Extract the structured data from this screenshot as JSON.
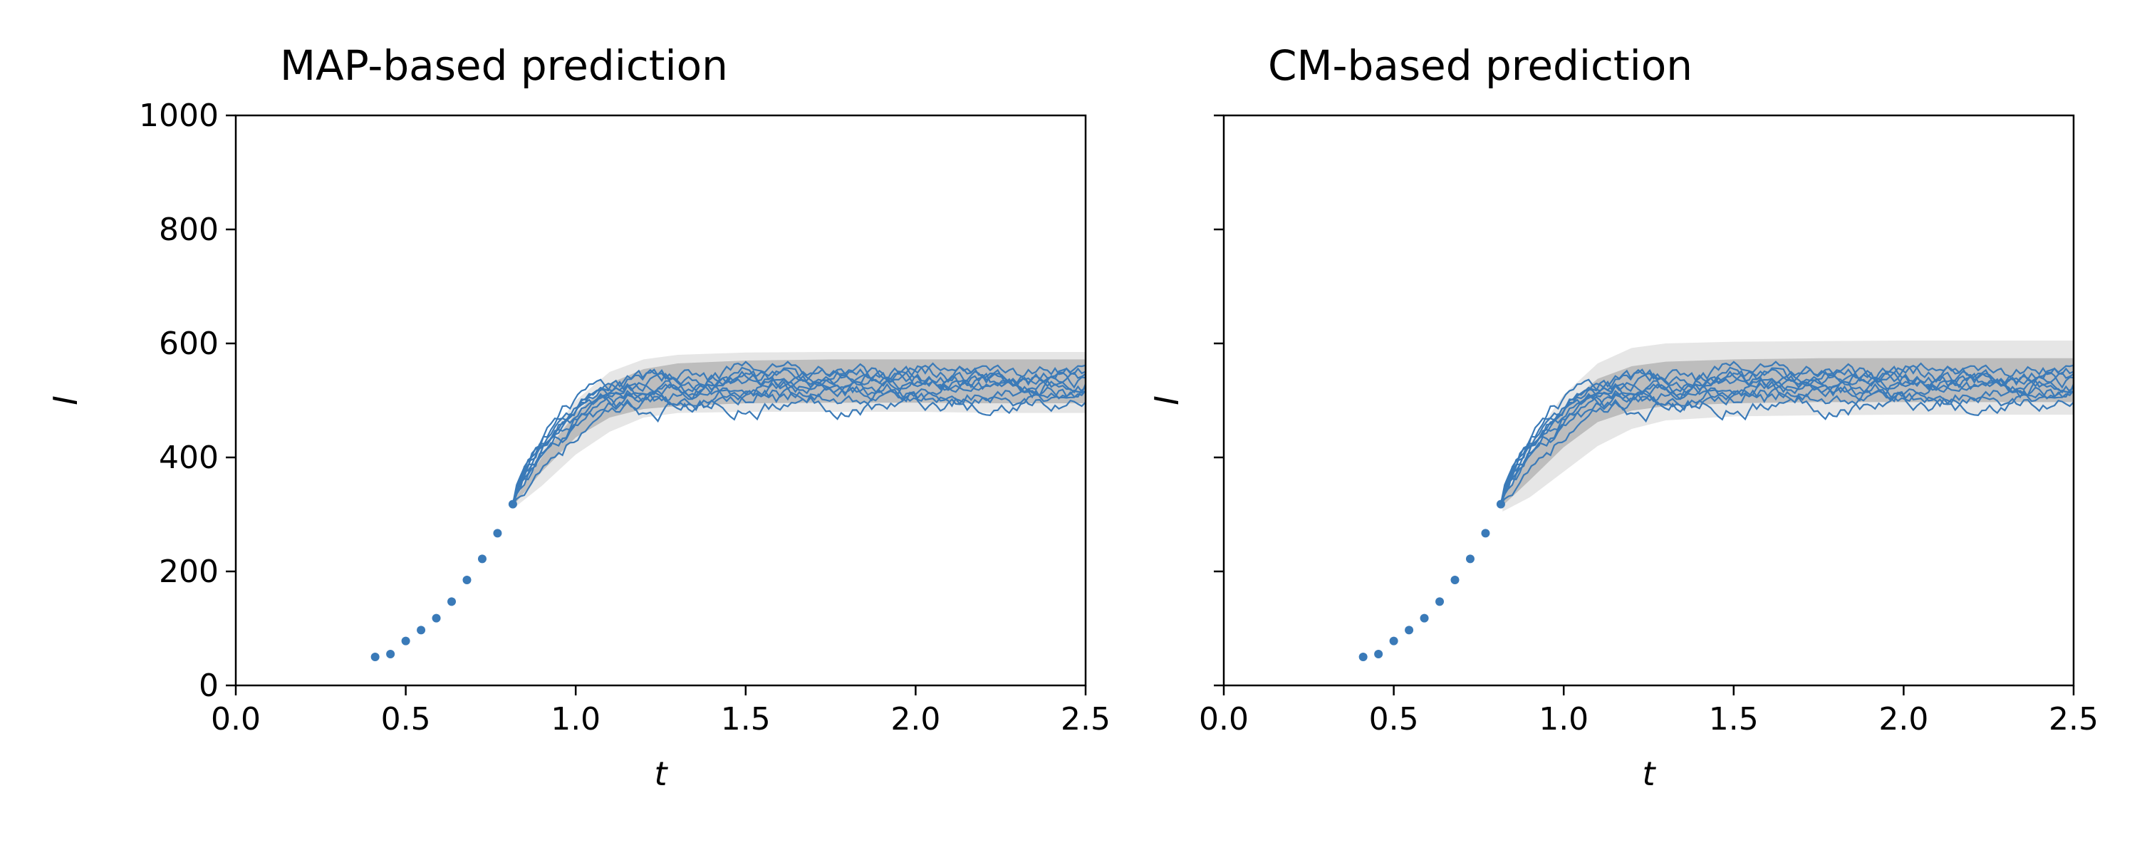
{
  "figure": {
    "background": "#ffffff"
  },
  "chart_data": [
    {
      "type": "line",
      "title": "MAP-based prediction",
      "xlabel": "t",
      "ylabel": "I",
      "xlim": [
        0,
        2.5
      ],
      "ylim": [
        0,
        1000
      ],
      "xticks": [
        0.0,
        0.5,
        1.0,
        1.5,
        2.0,
        2.5
      ],
      "xtick_labels": [
        "0.0",
        "0.5",
        "1.0",
        "1.5",
        "2.0",
        "2.5"
      ],
      "yticks": [
        0,
        200,
        400,
        600,
        800,
        1000
      ],
      "ytick_labels": [
        "0",
        "200",
        "400",
        "600",
        "800",
        "1000"
      ],
      "show_ytick_labels": true,
      "grid": false,
      "observed": {
        "color": "#3a7ab8",
        "x": [
          0.41,
          0.455,
          0.5,
          0.545,
          0.59,
          0.635,
          0.68,
          0.725,
          0.77,
          0.815
        ],
        "y": [
          50,
          55,
          78,
          97,
          118,
          147,
          185,
          222,
          267,
          318
        ]
      },
      "bands": [
        {
          "color": "#e6e6e6",
          "x": [
            0.82,
            0.9,
            1.0,
            1.1,
            1.2,
            1.3,
            1.5,
            1.75,
            2.0,
            2.25,
            2.5
          ],
          "lower": [
            312,
            350,
            405,
            445,
            470,
            478,
            480,
            480,
            480,
            478,
            478
          ],
          "upper": [
            332,
            420,
            500,
            550,
            572,
            580,
            584,
            585,
            585,
            585,
            585
          ]
        },
        {
          "color": "#bdbdbd",
          "x": [
            0.82,
            0.9,
            1.0,
            1.1,
            1.2,
            1.3,
            1.5,
            1.75,
            2.0,
            2.25,
            2.5
          ],
          "lower": [
            318,
            375,
            435,
            470,
            485,
            490,
            495,
            496,
            496,
            495,
            495
          ],
          "upper": [
            326,
            400,
            478,
            530,
            555,
            565,
            570,
            572,
            572,
            572,
            572
          ]
        }
      ],
      "trajectories": {
        "color": "#3a7ab8",
        "count": 10,
        "x_start": 0.815,
        "y_start": 318,
        "end_levels": [
          540,
          505,
          525,
          530,
          495,
          545,
          520,
          550,
          515,
          535
        ],
        "rise_rates": [
          7.0,
          6.4,
          7.6,
          6.8,
          6.0,
          7.3,
          6.6,
          7.9,
          6.2,
          7.1
        ]
      }
    },
    {
      "type": "line",
      "title": "CM-based prediction",
      "xlabel": "t",
      "ylabel": "I",
      "xlim": [
        0,
        2.5
      ],
      "ylim": [
        0,
        1000
      ],
      "xticks": [
        0.0,
        0.5,
        1.0,
        1.5,
        2.0,
        2.5
      ],
      "xtick_labels": [
        "0.0",
        "0.5",
        "1.0",
        "1.5",
        "2.0",
        "2.5"
      ],
      "yticks": [
        0,
        200,
        400,
        600,
        800,
        1000
      ],
      "ytick_labels": [
        "0",
        "200",
        "400",
        "600",
        "800",
        "1000"
      ],
      "show_ytick_labels": false,
      "grid": false,
      "observed": {
        "color": "#3a7ab8",
        "x": [
          0.41,
          0.455,
          0.5,
          0.545,
          0.59,
          0.635,
          0.68,
          0.725,
          0.77,
          0.815
        ],
        "y": [
          50,
          55,
          78,
          97,
          118,
          147,
          185,
          222,
          267,
          318
        ]
      },
      "bands": [
        {
          "color": "#e6e6e6",
          "x": [
            0.82,
            0.9,
            1.0,
            1.1,
            1.2,
            1.3,
            1.5,
            1.75,
            2.0,
            2.25,
            2.5
          ],
          "lower": [
            305,
            330,
            375,
            420,
            450,
            465,
            472,
            474,
            475,
            475,
            475
          ],
          "upper": [
            335,
            425,
            510,
            565,
            592,
            600,
            603,
            604,
            605,
            605,
            605
          ]
        },
        {
          "color": "#bdbdbd",
          "x": [
            0.82,
            0.9,
            1.0,
            1.1,
            1.2,
            1.3,
            1.5,
            1.75,
            2.0,
            2.25,
            2.5
          ],
          "lower": [
            315,
            360,
            418,
            462,
            482,
            490,
            495,
            497,
            497,
            497,
            497
          ],
          "upper": [
            328,
            405,
            488,
            538,
            560,
            568,
            572,
            574,
            574,
            574,
            574
          ]
        }
      ],
      "trajectories": {
        "color": "#3a7ab8",
        "count": 10,
        "x_start": 0.815,
        "y_start": 318,
        "end_levels": [
          540,
          505,
          525,
          530,
          495,
          545,
          520,
          550,
          515,
          535
        ],
        "rise_rates": [
          7.0,
          6.4,
          7.6,
          6.8,
          6.0,
          7.3,
          6.6,
          7.9,
          6.2,
          7.1
        ]
      }
    }
  ]
}
